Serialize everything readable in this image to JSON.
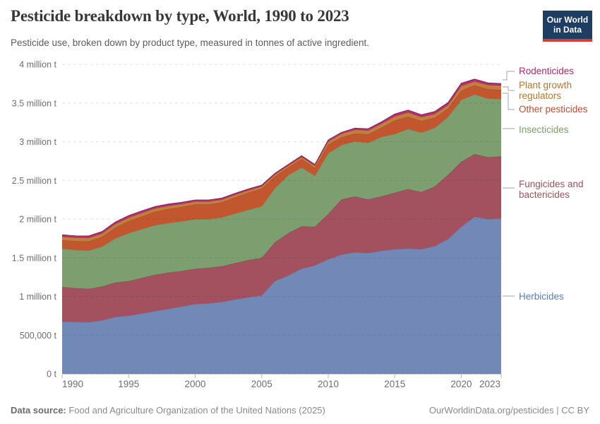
{
  "header": {
    "title": "Pesticide breakdown by type, World, 1990 to 2023",
    "subtitle": "Pesticide use, broken down by product type, measured in tonnes of active ingredient.",
    "logo": {
      "line1": "Our World",
      "line2": "in Data"
    }
  },
  "footer": {
    "source_label": "Data source:",
    "source_text": " Food and Agriculture Organization of the United Nations (2025)",
    "attribution": "OurWorldinData.org/pesticides | CC BY"
  },
  "colors": {
    "background": "#ffffff",
    "logo_navy": "#1d3d63",
    "logo_red": "#d73c34",
    "gridline": "rgba(0,0,0,0.11)",
    "axis": "#c8c8c8",
    "tick_text": "#6e6e6e",
    "connector": "#a3a3a3"
  },
  "chart_data": {
    "type": "area",
    "stacked": true,
    "title": "Pesticide breakdown by type, World, 1990 to 2023",
    "xlabel": "",
    "ylabel": "tonnes of active ingredient",
    "ylim": [
      0,
      4000000
    ],
    "grid": true,
    "legend_position": "right",
    "x": [
      1990,
      1991,
      1992,
      1993,
      1994,
      1995,
      1996,
      1997,
      1998,
      1999,
      2000,
      2001,
      2002,
      2003,
      2004,
      2005,
      2006,
      2007,
      2008,
      2009,
      2010,
      2011,
      2012,
      2013,
      2014,
      2015,
      2016,
      2017,
      2018,
      2019,
      2020,
      2021,
      2022,
      2023
    ],
    "x_ticks": [
      1990,
      1995,
      2000,
      2005,
      2010,
      2015,
      2020,
      2023
    ],
    "y_ticks": [
      {
        "value": 0,
        "label": "0 t"
      },
      {
        "value": 500000,
        "label": "500,000 t"
      },
      {
        "value": 1000000,
        "label": "1 million t"
      },
      {
        "value": 1500000,
        "label": "1.5 million t"
      },
      {
        "value": 2000000,
        "label": "2 million t"
      },
      {
        "value": 2500000,
        "label": "2.5 million t"
      },
      {
        "value": 3000000,
        "label": "3 million t"
      },
      {
        "value": 3500000,
        "label": "3.5 million t"
      },
      {
        "value": 4000000,
        "label": "4 million t"
      }
    ],
    "series": [
      {
        "name": "Herbicides",
        "color": "#7289b7",
        "stroke": "#5f7aa9",
        "label_color": "#577eb8",
        "values": [
          676000,
          670000,
          668000,
          690000,
          735000,
          750000,
          780000,
          810000,
          840000,
          870000,
          900000,
          910000,
          930000,
          960000,
          990000,
          1013000,
          1200000,
          1270000,
          1360000,
          1400000,
          1480000,
          1540000,
          1570000,
          1560000,
          1590000,
          1610000,
          1620000,
          1610000,
          1650000,
          1740000,
          1900000,
          2030000,
          2000000,
          2010000
        ]
      },
      {
        "name": "Fungicides and bactericides",
        "color": "#a3515f",
        "stroke": "#8e4251",
        "label_color": "#a2505f",
        "values": [
          447000,
          438000,
          430000,
          438000,
          445000,
          447000,
          460000,
          470000,
          470000,
          460000,
          457000,
          460000,
          460000,
          470000,
          480000,
          485000,
          500000,
          548000,
          547000,
          500000,
          585000,
          713000,
          721000,
          695000,
          703000,
          731000,
          767000,
          740000,
          770000,
          831000,
          840000,
          810000,
          800000,
          800000
        ]
      },
      {
        "name": "Insecticides",
        "color": "#7d9f70",
        "stroke": "#6b905d",
        "label_color": "#79a065",
        "values": [
          494000,
          492000,
          495000,
          515000,
          570000,
          620000,
          630000,
          640000,
          640000,
          640000,
          640000,
          630000,
          630000,
          640000,
          650000,
          666000,
          700000,
          749000,
          759000,
          660000,
          785000,
          703000,
          713000,
          730000,
          767000,
          758000,
          776000,
          767000,
          758000,
          749000,
          800000,
          770000,
          758000,
          740000
        ]
      },
      {
        "name": "Other pesticides",
        "color": "#c2572f",
        "stroke": "#a94722",
        "label_color": "#c24e32",
        "values": [
          110000,
          114000,
          118000,
          125000,
          140000,
          155000,
          165000,
          175000,
          180000,
          185000,
          192000,
          190000,
          195000,
          210000,
          220000,
          228000,
          150000,
          100000,
          110000,
          100000,
          110000,
          100000,
          100000,
          110000,
          120000,
          174000,
          160000,
          150000,
          130000,
          107000,
          120000,
          119000,
          120000,
          120000
        ]
      },
      {
        "name": "Plant growth regulators",
        "color": "#c07f3e",
        "stroke": "#a2671f",
        "label_color": "#b5762b",
        "values": [
          46000,
          46000,
          46000,
          46000,
          46000,
          46000,
          45000,
          43000,
          42000,
          40000,
          38000,
          37000,
          36000,
          34000,
          32000,
          30000,
          28000,
          25000,
          27000,
          30000,
          45000,
          47000,
          50000,
          50000,
          52000,
          55000,
          55000,
          52000,
          50000,
          45000,
          60000,
          50000,
          55000,
          55000
        ]
      },
      {
        "name": "Rodenticides",
        "color": "#b42e72",
        "stroke": "#93205c",
        "label_color": "#ad2a6d",
        "values": [
          23000,
          24000,
          25000,
          25000,
          26000,
          27000,
          27000,
          25000,
          23000,
          21000,
          20000,
          20000,
          19000,
          18000,
          17000,
          16000,
          15000,
          14000,
          15000,
          16000,
          18000,
          18000,
          20000,
          22000,
          25000,
          30000,
          30000,
          30000,
          32000,
          33000,
          35000,
          30000,
          28000,
          27000
        ]
      }
    ]
  }
}
